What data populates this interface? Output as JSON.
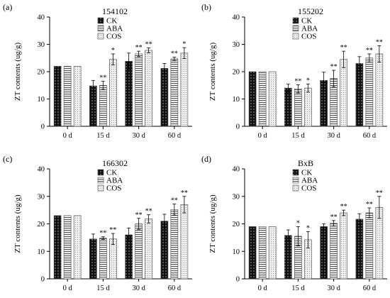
{
  "chart_data": [
    {
      "type": "bar",
      "panel_label": "(a)",
      "title": "154102",
      "ylabel": "ZT contents (ug/g)",
      "ylim": [
        0,
        40
      ],
      "yticks": [
        "0",
        "10",
        "20",
        "30",
        "40"
      ],
      "categories": [
        "0 d",
        "15 d",
        "30 d",
        "60 d"
      ],
      "legend": "top-left",
      "series": [
        {
          "name": "CK",
          "values": [
            22.0,
            14.8,
            23.8,
            21.2
          ],
          "errors": [
            0,
            2.0,
            3.0,
            1.8
          ],
          "sig": [
            "",
            "",
            "",
            ""
          ]
        },
        {
          "name": "ABA",
          "values": [
            22.0,
            15.0,
            26.5,
            24.7
          ],
          "errors": [
            0,
            1.5,
            1.0,
            0.6
          ],
          "sig": [
            "",
            "**",
            "**",
            "**"
          ]
        },
        {
          "name": "COS",
          "values": [
            22.0,
            24.5,
            27.8,
            26.8
          ],
          "errors": [
            0,
            2.0,
            0.9,
            2.0
          ],
          "sig": [
            "",
            "*",
            "**",
            "*"
          ]
        }
      ]
    },
    {
      "type": "bar",
      "panel_label": "(b)",
      "title": "155202",
      "ylabel": "ZT contents (ug/g)",
      "ylim": [
        0,
        40
      ],
      "yticks": [
        "0",
        "10",
        "20",
        "30",
        "40"
      ],
      "categories": [
        "0 d",
        "15 d",
        "30 d",
        "60 d"
      ],
      "legend": "top-left",
      "series": [
        {
          "name": "CK",
          "values": [
            20.0,
            14.0,
            16.8,
            23.0
          ],
          "errors": [
            0,
            1.5,
            3.0,
            2.5
          ],
          "sig": [
            "",
            "",
            "",
            ""
          ]
        },
        {
          "name": "ABA",
          "values": [
            20.0,
            13.7,
            17.5,
            25.0
          ],
          "errors": [
            0,
            1.5,
            3.0,
            1.5
          ],
          "sig": [
            "",
            "**",
            "**",
            "**"
          ]
        },
        {
          "name": "COS",
          "values": [
            20.0,
            14.0,
            24.5,
            26.5
          ],
          "errors": [
            0,
            1.5,
            3.0,
            3.0
          ],
          "sig": [
            "",
            "*",
            "**",
            "**"
          ]
        }
      ]
    },
    {
      "type": "bar",
      "panel_label": "(c)",
      "title": "166302",
      "ylabel": "ZT contents (ug/g)",
      "ylim": [
        0,
        40
      ],
      "yticks": [
        "0",
        "10",
        "20",
        "30",
        "40"
      ],
      "categories": [
        "0 d",
        "15 d",
        "30 d",
        "60 d"
      ],
      "legend": "top-left",
      "series": [
        {
          "name": "CK",
          "values": [
            23.0,
            14.5,
            16.0,
            21.0
          ],
          "errors": [
            0,
            1.8,
            2.5,
            2.5
          ],
          "sig": [
            "",
            "",
            "",
            ""
          ]
        },
        {
          "name": "ABA",
          "values": [
            23.0,
            14.8,
            20.0,
            25.2
          ],
          "errors": [
            0,
            0.5,
            2.0,
            2.0
          ],
          "sig": [
            "",
            "**",
            "**",
            "**"
          ]
        },
        {
          "name": "COS",
          "values": [
            23.0,
            14.5,
            21.8,
            27.0
          ],
          "errors": [
            0,
            2.0,
            1.5,
            3.0
          ],
          "sig": [
            "",
            "**",
            "**",
            "**"
          ]
        }
      ]
    },
    {
      "type": "bar",
      "panel_label": "(d)",
      "title": "BxB",
      "ylabel": "ZT contents (ug/g)",
      "ylim": [
        0,
        40
      ],
      "yticks": [
        "0",
        "10",
        "20",
        "30",
        "40"
      ],
      "categories": [
        "0 d",
        "15 d",
        "30 d",
        "60 d"
      ],
      "legend": "top-left",
      "series": [
        {
          "name": "CK",
          "values": [
            19.0,
            15.8,
            19.0,
            21.7
          ],
          "errors": [
            0,
            2.0,
            1.0,
            2.0
          ],
          "sig": [
            "",
            "",
            "",
            ""
          ]
        },
        {
          "name": "ABA",
          "values": [
            19.0,
            15.5,
            20.2,
            24.0
          ],
          "errors": [
            0,
            3.5,
            1.0,
            1.8
          ],
          "sig": [
            "",
            "*",
            "**",
            "**"
          ]
        },
        {
          "name": "COS",
          "values": [
            19.0,
            14.2,
            24.0,
            26.0
          ],
          "errors": [
            0,
            3.0,
            1.0,
            4.0
          ],
          "sig": [
            "",
            "*",
            "**",
            "**"
          ]
        }
      ]
    }
  ]
}
